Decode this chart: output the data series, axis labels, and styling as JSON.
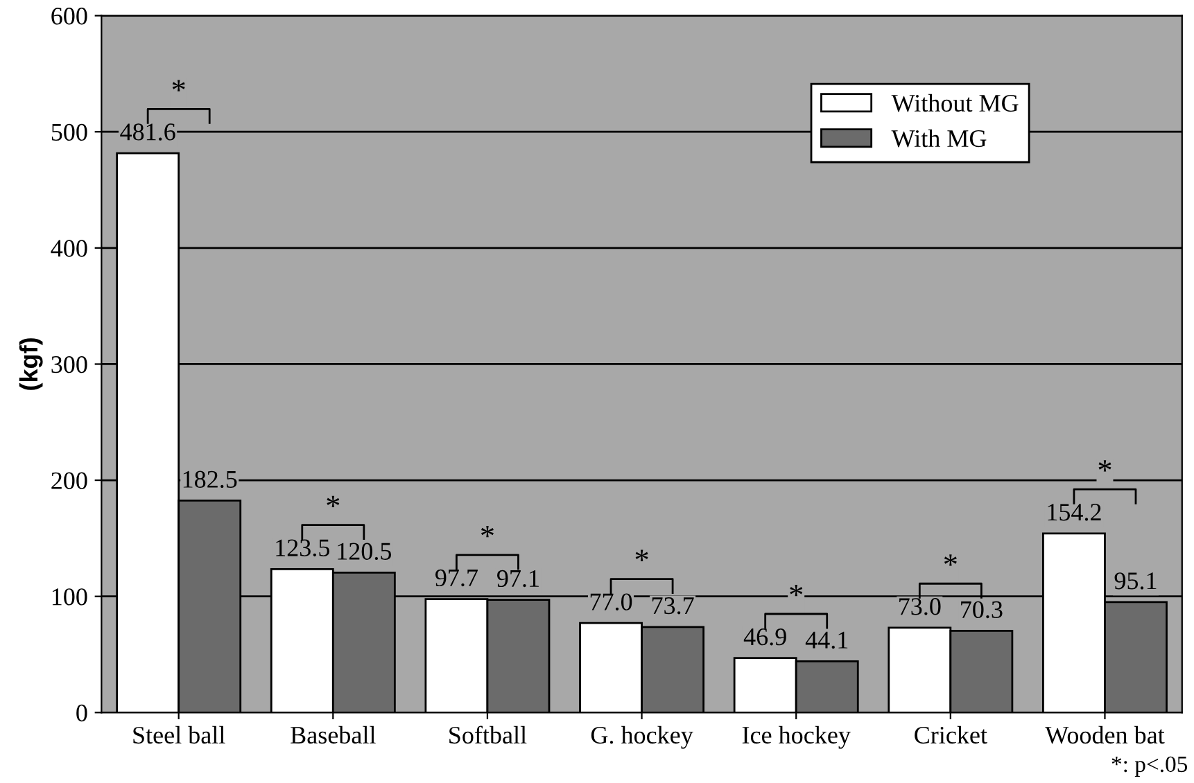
{
  "chart_data": {
    "type": "bar",
    "ylabel": "(kgf)",
    "categories": [
      "Steel ball",
      "Baseball",
      "Softball",
      "G. hockey",
      "Ice hockey",
      "Cricket",
      "Wooden bat"
    ],
    "series": [
      {
        "name": "Without MG",
        "color": "#ffffff",
        "values": [
          481.6,
          123.5,
          97.7,
          77.0,
          46.9,
          73.0,
          154.2
        ],
        "value_labels": [
          "481.6",
          "123.5",
          "97.7",
          "77.0",
          "46.9",
          "73.0",
          "154.2"
        ]
      },
      {
        "name": "With MG",
        "color": "#6b6b6b",
        "values": [
          182.5,
          120.5,
          97.1,
          73.7,
          44.1,
          70.3,
          95.1
        ],
        "value_labels": [
          "182.5",
          "120.5",
          "97.1",
          "73.7",
          "44.1",
          "70.3",
          "95.1"
        ]
      }
    ],
    "ylim": [
      0,
      600
    ],
    "yticks": [
      0,
      100,
      200,
      300,
      400,
      500,
      600
    ],
    "grid": "y",
    "legend": "top right",
    "annotations": [
      "*",
      "*",
      "*",
      "*",
      "*",
      "*",
      "*",
      "*: p<.05"
    ]
  }
}
